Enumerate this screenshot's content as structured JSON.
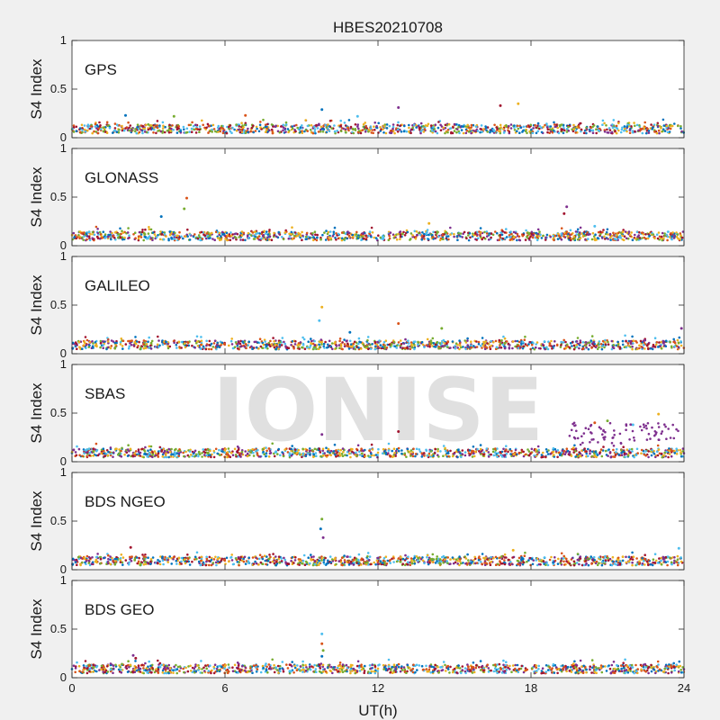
{
  "chart_data": {
    "type": "scatter",
    "title": "HBES20210708",
    "xlabel": "UT(h)",
    "ylabel": "S4 Index",
    "xlim": [
      0,
      24
    ],
    "ylim": [
      0,
      1
    ],
    "xticks": [
      0,
      6,
      12,
      18,
      24
    ],
    "yticks": [
      0,
      0.5,
      1
    ],
    "ytick_labels": [
      "0",
      "0.5",
      "1"
    ],
    "watermark": "IONISE",
    "watermark_panel": 3,
    "series_colors": [
      "#0072BD",
      "#D95319",
      "#EDB120",
      "#7E2F8E",
      "#77AC30",
      "#4DBEEE",
      "#A2142F"
    ],
    "panels": [
      {
        "label": "GPS",
        "baseline": 0.09,
        "spikes": [
          [
            9.8,
            0.29
          ],
          [
            12.8,
            0.31
          ],
          [
            16.8,
            0.33
          ],
          [
            17.5,
            0.35
          ],
          [
            11.2,
            0.22
          ],
          [
            6.8,
            0.23
          ],
          [
            4.0,
            0.22
          ],
          [
            2.1,
            0.23
          ]
        ]
      },
      {
        "label": "GLONASS",
        "baseline": 0.1,
        "spikes": [
          [
            4.5,
            0.49
          ],
          [
            4.4,
            0.38
          ],
          [
            3.5,
            0.3
          ],
          [
            19.4,
            0.4
          ],
          [
            19.3,
            0.33
          ],
          [
            14.0,
            0.23
          ],
          [
            20.5,
            0.2
          ]
        ]
      },
      {
        "label": "GALILEO",
        "baseline": 0.09,
        "spikes": [
          [
            9.8,
            0.48
          ],
          [
            9.7,
            0.34
          ],
          [
            12.8,
            0.31
          ],
          [
            14.5,
            0.26
          ],
          [
            10.9,
            0.22
          ],
          [
            23.9,
            0.26
          ]
        ]
      },
      {
        "label": "SBAS",
        "baseline": 0.09,
        "spikes": [
          [
            9.8,
            0.28
          ],
          [
            12.8,
            0.31
          ],
          [
            23.0,
            0.49
          ],
          [
            22.0,
            0.38
          ],
          [
            20.5,
            0.4
          ],
          [
            21.0,
            0.42
          ]
        ]
      },
      {
        "label": "BDS NGEO",
        "baseline": 0.09,
        "spikes": [
          [
            9.8,
            0.52
          ],
          [
            9.75,
            0.42
          ],
          [
            9.85,
            0.33
          ],
          [
            2.3,
            0.23
          ],
          [
            17.3,
            0.2
          ],
          [
            23.8,
            0.22
          ]
        ]
      },
      {
        "label": "BDS GEO",
        "baseline": 0.09,
        "spikes": [
          [
            9.8,
            0.45
          ],
          [
            9.8,
            0.35
          ],
          [
            9.85,
            0.28
          ],
          [
            9.8,
            0.22
          ],
          [
            2.4,
            0.23
          ],
          [
            2.5,
            0.2
          ]
        ]
      }
    ]
  }
}
